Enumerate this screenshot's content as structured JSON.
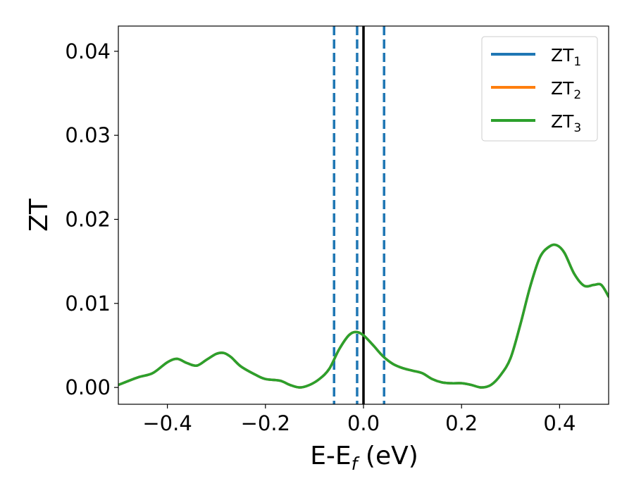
{
  "chart_data": {
    "type": "line",
    "title": "",
    "xlabel": {
      "main": "E-E",
      "sub": "f",
      "unit": " (eV)"
    },
    "ylabel": "ZT",
    "xlim": [
      -0.5,
      0.5
    ],
    "ylim": [
      -0.002,
      0.043
    ],
    "x_ticks": [
      -0.4,
      -0.2,
      0.0,
      0.2,
      0.4
    ],
    "x_tick_labels": [
      "−0.4",
      "−0.2",
      "0.0",
      "0.2",
      "0.4"
    ],
    "y_ticks": [
      0.0,
      0.01,
      0.02,
      0.03,
      0.04
    ],
    "y_tick_labels": [
      "0.00",
      "0.01",
      "0.02",
      "0.03",
      "0.04"
    ],
    "grid": false,
    "legend": {
      "position": "top-right",
      "entries": [
        {
          "main": "ZT",
          "sub": "1",
          "color": "#1f77b4"
        },
        {
          "main": "ZT",
          "sub": "2",
          "color": "#ff7f0e"
        },
        {
          "main": "ZT",
          "sub": "3",
          "color": "#2ca02c"
        }
      ]
    },
    "vlines": [
      {
        "x": -0.06,
        "style": "dashed",
        "color": "#1f77b4"
      },
      {
        "x": -0.013,
        "style": "dashed",
        "color": "#1f77b4"
      },
      {
        "x": 0.0,
        "style": "solid",
        "color": "#000000"
      },
      {
        "x": 0.042,
        "style": "dashed",
        "color": "#1f77b4"
      }
    ],
    "x": [
      -0.5,
      -0.46,
      -0.43,
      -0.4,
      -0.38,
      -0.36,
      -0.34,
      -0.32,
      -0.3,
      -0.285,
      -0.27,
      -0.25,
      -0.22,
      -0.2,
      -0.17,
      -0.15,
      -0.13,
      -0.11,
      -0.09,
      -0.07,
      -0.05,
      -0.03,
      -0.015,
      0.0,
      0.02,
      0.04,
      0.06,
      0.08,
      0.1,
      0.12,
      0.14,
      0.16,
      0.18,
      0.2,
      0.22,
      0.24,
      0.26,
      0.28,
      0.3,
      0.32,
      0.34,
      0.36,
      0.38,
      0.395,
      0.41,
      0.43,
      0.45,
      0.47,
      0.485,
      0.5
    ],
    "series": [
      {
        "name": "ZT1",
        "color": "#1f77b4",
        "values": [
          0.0003,
          0.0012,
          0.0017,
          0.003,
          0.0034,
          0.0029,
          0.0026,
          0.0033,
          0.004,
          0.0041,
          0.0036,
          0.0025,
          0.0015,
          0.001,
          0.0008,
          0.0003,
          0.0,
          0.0003,
          0.001,
          0.0022,
          0.0045,
          0.0062,
          0.0066,
          0.0062,
          0.005,
          0.0037,
          0.0028,
          0.0023,
          0.002,
          0.0017,
          0.001,
          0.0006,
          0.0005,
          0.0005,
          0.0003,
          0.0,
          0.0003,
          0.0015,
          0.0035,
          0.0075,
          0.012,
          0.0155,
          0.0168,
          0.0169,
          0.016,
          0.0135,
          0.0121,
          0.0122,
          0.0122,
          0.0108
        ]
      },
      {
        "name": "ZT2",
        "color": "#ff7f0e",
        "values": [
          0.0003,
          0.0012,
          0.0017,
          0.003,
          0.0034,
          0.0029,
          0.0026,
          0.0033,
          0.004,
          0.0041,
          0.0036,
          0.0025,
          0.0015,
          0.001,
          0.0008,
          0.0003,
          0.0,
          0.0003,
          0.001,
          0.0022,
          0.0045,
          0.0062,
          0.0066,
          0.0062,
          0.005,
          0.0037,
          0.0028,
          0.0023,
          0.002,
          0.0017,
          0.001,
          0.0006,
          0.0005,
          0.0005,
          0.0003,
          0.0,
          0.0003,
          0.0015,
          0.0035,
          0.0075,
          0.012,
          0.0155,
          0.0168,
          0.0169,
          0.016,
          0.0135,
          0.0121,
          0.0122,
          0.0122,
          0.0108
        ]
      },
      {
        "name": "ZT3",
        "color": "#2ca02c",
        "values": [
          0.0003,
          0.0012,
          0.0017,
          0.003,
          0.0034,
          0.0029,
          0.0026,
          0.0033,
          0.004,
          0.0041,
          0.0036,
          0.0025,
          0.0015,
          0.001,
          0.0008,
          0.0003,
          0.0,
          0.0003,
          0.001,
          0.0022,
          0.0045,
          0.0062,
          0.0066,
          0.0062,
          0.005,
          0.0037,
          0.0028,
          0.0023,
          0.002,
          0.0017,
          0.001,
          0.0006,
          0.0005,
          0.0005,
          0.0003,
          0.0,
          0.0003,
          0.0015,
          0.0035,
          0.0075,
          0.012,
          0.0155,
          0.0168,
          0.0169,
          0.016,
          0.0135,
          0.0121,
          0.0122,
          0.0122,
          0.0108
        ]
      }
    ]
  }
}
